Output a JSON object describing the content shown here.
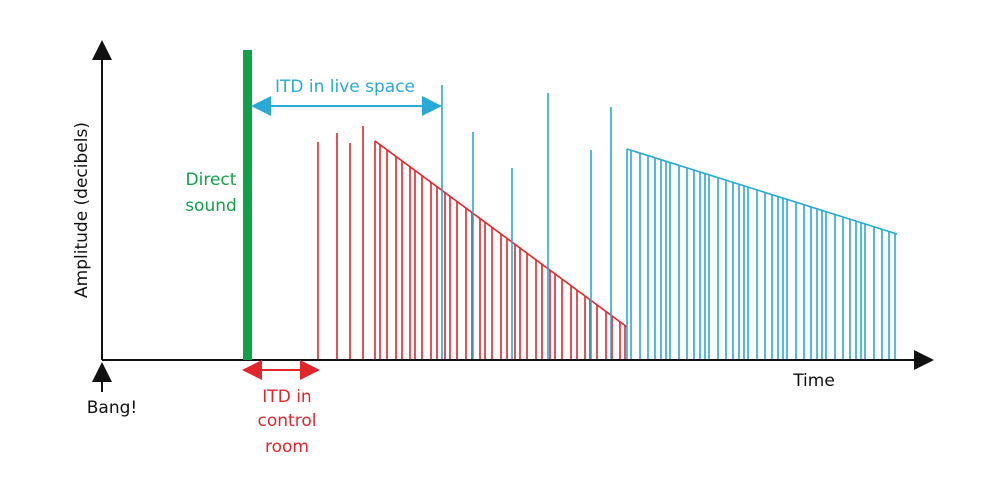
{
  "axes": {
    "y_label": "Amplitude (decibels)",
    "x_label": "Time",
    "origin_label": "Bang!"
  },
  "annotations": {
    "direct_sound": [
      "Direct",
      "sound"
    ],
    "itd_live_space": "ITD in live space",
    "itd_control_room": [
      "ITD in",
      "control",
      "room"
    ]
  }
}
